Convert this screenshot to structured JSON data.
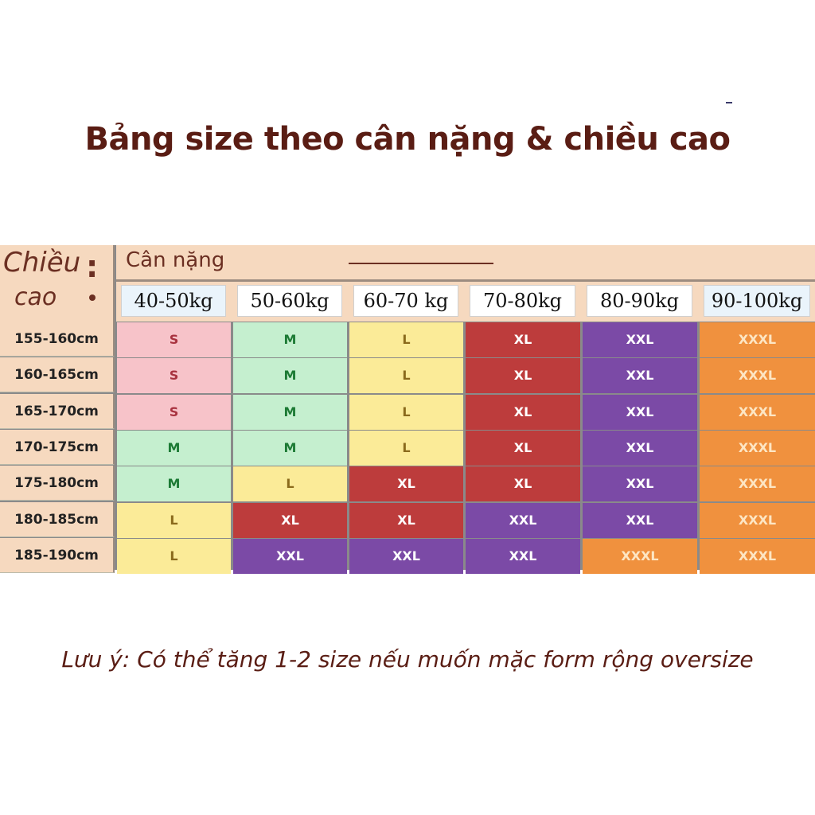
{
  "title": "Bảng size theo cân nặng & chiều cao",
  "height_label_line1": "Chiều",
  "height_label_line2": "cao",
  "weight_label": "Cân nặng",
  "weights": [
    "40-50kg",
    "50-60kg",
    "60-70 kg",
    "70-80kg",
    "80-90kg",
    "90-100kg"
  ],
  "heights": [
    "155-160cm",
    "160-165cm",
    "165-170cm",
    "170-175cm",
    "175-180cm",
    "180-185cm",
    "185-190cm"
  ],
  "sizes": [
    [
      "S",
      "M",
      "L",
      "XL",
      "XXL",
      "XXXL"
    ],
    [
      "S",
      "M",
      "L",
      "XL",
      "XXL",
      "XXXL"
    ],
    [
      "S",
      "M",
      "L",
      "XL",
      "XXL",
      "XXXL"
    ],
    [
      "M",
      "M",
      "L",
      "XL",
      "XXL",
      "XXXL"
    ],
    [
      "M",
      "L",
      "XL",
      "XL",
      "XXL",
      "XXXL"
    ],
    [
      "L",
      "XL",
      "XL",
      "XXL",
      "XXL",
      "XXXL"
    ],
    [
      "L",
      "XXL",
      "XXL",
      "XXL",
      "XXXL",
      "XXXL"
    ]
  ],
  "size_colors": {
    "S": {
      "bg": "#f7c3c9",
      "fg": "#a8323f"
    },
    "M": {
      "bg": "#c5efcf",
      "fg": "#1c7a34"
    },
    "L": {
      "bg": "#fbeb98",
      "fg": "#8a6a1c"
    },
    "XL": {
      "bg": "#bd3c3c",
      "fg": "#ffffff"
    },
    "XXL": {
      "bg": "#7b4aa6",
      "fg": "#ffffff"
    },
    "XXXL": {
      "bg": "#f0913e",
      "fg": "#fde6c4"
    }
  },
  "note": "Lưu ý: Có thể tăng 1-2 size nếu muốn mặc form rộng oversize"
}
